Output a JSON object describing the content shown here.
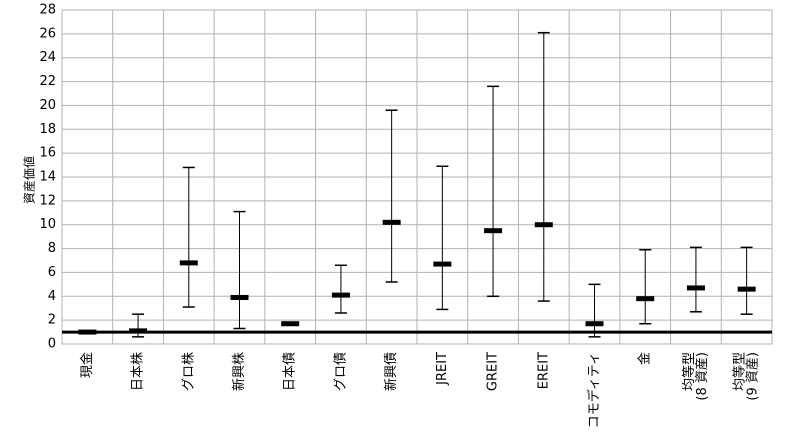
{
  "chart_data": {
    "type": "range",
    "y_label": "資産価値",
    "categories": [
      "現金",
      "日本株",
      "グロ株",
      "新興株",
      "日本債",
      "グロ債",
      "新興債",
      "JREIT",
      "GREIT",
      "EREIT",
      "コモディティ",
      "金",
      [
        "均等型",
        "(8 資産)"
      ],
      [
        "均等型",
        "(9 資産)"
      ]
    ],
    "values": [
      1.0,
      1.1,
      6.8,
      3.9,
      1.7,
      4.1,
      10.2,
      6.7,
      9.5,
      10.0,
      1.7,
      3.8,
      4.7,
      4.6
    ],
    "low": [
      1.0,
      0.6,
      3.1,
      1.3,
      1.6,
      2.6,
      5.2,
      2.9,
      4.0,
      3.6,
      0.6,
      1.7,
      2.7,
      2.5
    ],
    "high": [
      1.0,
      2.5,
      14.8,
      11.1,
      1.8,
      6.6,
      19.6,
      14.9,
      21.6,
      26.1,
      5.0,
      7.9,
      8.1,
      8.1
    ],
    "reference_line": 1,
    "color": "#000000",
    "ylim": [
      0,
      28
    ],
    "yticks": [
      0,
      2,
      4,
      6,
      8,
      10,
      12,
      14,
      16,
      18,
      20,
      22,
      24,
      26,
      28
    ],
    "grid": true
  }
}
